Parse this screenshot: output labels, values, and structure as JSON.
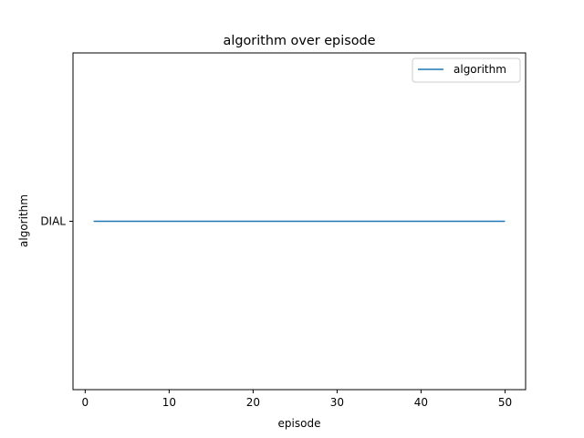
{
  "chart_data": {
    "type": "line",
    "title": "algorithm over episode",
    "xlabel": "episode",
    "ylabel": "algorithm",
    "xlim": [
      -1.45,
      52.45
    ],
    "x_ticks": [
      0,
      10,
      20,
      30,
      40,
      50
    ],
    "y_categories": [
      "DIAL"
    ],
    "grid": false,
    "legend_position": "upper right",
    "series": [
      {
        "name": "algorithm",
        "color": "#1f77b4",
        "x": [
          1,
          50
        ],
        "y": [
          "DIAL",
          "DIAL"
        ]
      }
    ]
  }
}
